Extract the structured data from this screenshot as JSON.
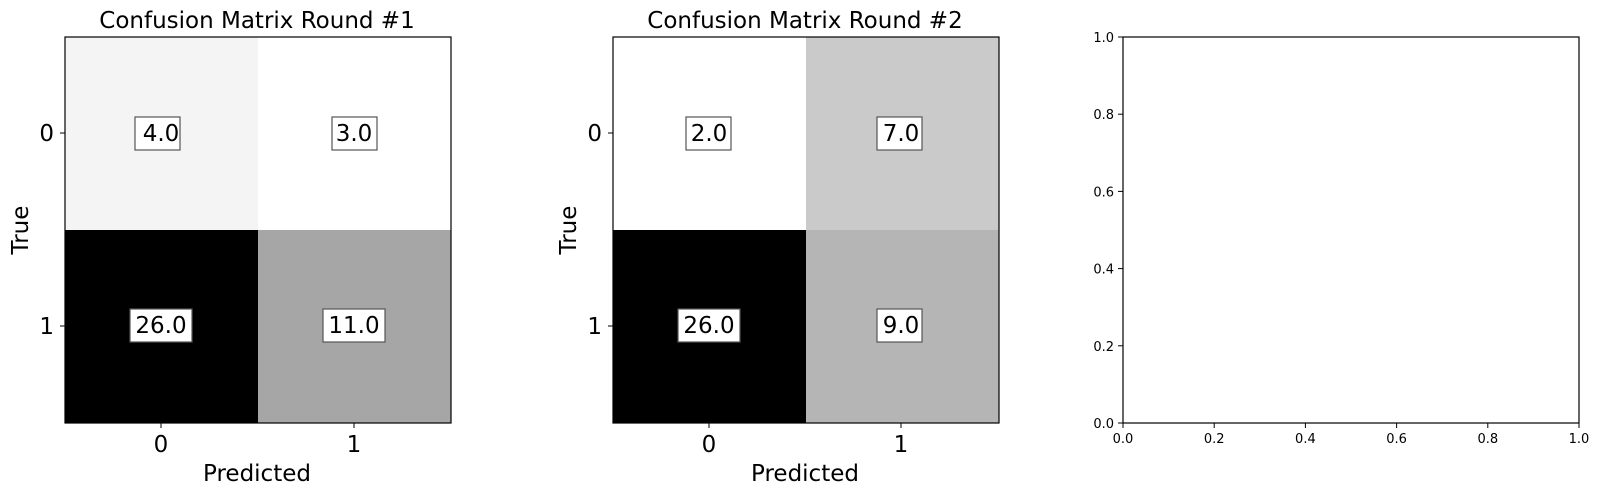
{
  "chart_data": [
    {
      "type": "heatmap",
      "title": "Confusion Matrix Round #1",
      "xlabel": "Predicted",
      "ylabel": "True",
      "x_ticks": [
        "0",
        "1"
      ],
      "y_ticks": [
        "0",
        "1"
      ],
      "values": [
        [
          4.0,
          3.0
        ],
        [
          26.0,
          11.0
        ]
      ],
      "cell_labels": [
        [
          "4.0",
          "3.0"
        ],
        [
          "26.0",
          "11.0"
        ]
      ],
      "colormap": "gray_r"
    },
    {
      "type": "heatmap",
      "title": "Confusion Matrix Round #2",
      "xlabel": "Predicted",
      "ylabel": "True",
      "x_ticks": [
        "0",
        "1"
      ],
      "y_ticks": [
        "0",
        "1"
      ],
      "values": [
        [
          2.0,
          7.0
        ],
        [
          26.0,
          9.0
        ]
      ],
      "cell_labels": [
        [
          "2.0",
          "7.0"
        ],
        [
          "26.0",
          "9.0"
        ]
      ],
      "colormap": "gray_r"
    },
    {
      "type": "scatter",
      "title": "",
      "xlabel": "",
      "ylabel": "",
      "xlim": [
        0.0,
        1.0
      ],
      "ylim": [
        0.0,
        1.0
      ],
      "x_ticks": [
        "0.0",
        "0.2",
        "0.4",
        "0.6",
        "0.8",
        "1.0"
      ],
      "y_ticks": [
        "0.0",
        "0.2",
        "0.4",
        "0.6",
        "0.8",
        "1.0"
      ],
      "series": []
    }
  ]
}
